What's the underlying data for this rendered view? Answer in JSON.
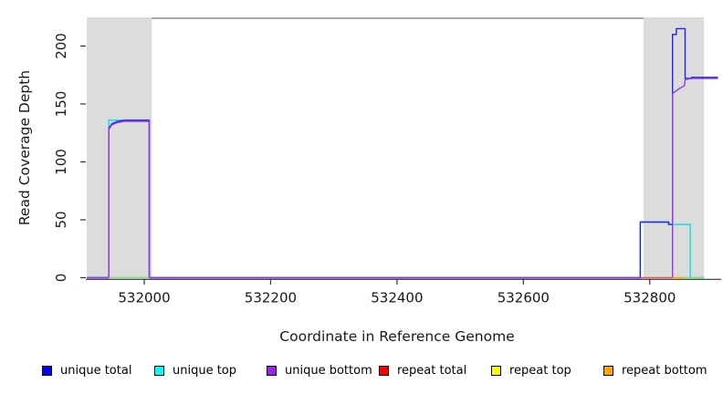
{
  "chart_data": {
    "type": "line",
    "title": "",
    "xlabel": "Coordinate in Reference Genome",
    "ylabel": "Read Coverage Depth",
    "xlim": [
      531909,
      532913
    ],
    "ylim": [
      0,
      224
    ],
    "x_ticks": [
      532000,
      532200,
      532400,
      532600,
      532800
    ],
    "y_ticks": [
      0,
      50,
      100,
      150,
      200
    ],
    "grid": false,
    "legend_position": "bottom",
    "shade_color": "#dcdcdc",
    "shaded_regions": [
      {
        "x0": 531909,
        "x1": 532012
      },
      {
        "x0": 532790,
        "x1": 532886
      }
    ],
    "top_line": {
      "x0": 532012,
      "x1": 532790,
      "value": 224,
      "color": "#8f8f8f"
    },
    "legend": [
      {
        "label": "unique total",
        "color": "#0000ff"
      },
      {
        "label": "unique top",
        "color": "#00ffff"
      },
      {
        "label": "unique bottom",
        "color": "#a020f0"
      },
      {
        "label": "repeat total",
        "color": "#ff0000"
      },
      {
        "label": "repeat top",
        "color": "#ffff00"
      },
      {
        "label": "repeat bottom",
        "color": "#ffa500"
      }
    ],
    "series": [
      {
        "name": "repeat top",
        "line_color": "#ffff00",
        "segments": [
          [
            [
              532790,
              0
            ],
            [
              532886,
              0
            ]
          ]
        ]
      },
      {
        "name": "unique top",
        "line_color": "#00dfe8",
        "segments": [
          [
            [
              531909,
              0
            ],
            [
              531944,
              0
            ],
            [
              531944,
              136
            ],
            [
              532008,
              136
            ],
            [
              532008,
              0
            ],
            [
              532785,
              0
            ],
            [
              532785,
              48
            ],
            [
              532830,
              48
            ],
            [
              532830,
              46
            ],
            [
              532864,
              46
            ],
            [
              532864,
              0
            ],
            [
              532886,
              0
            ]
          ]
        ]
      },
      {
        "name": "unique total",
        "line_color": "#2424e8",
        "segments": [
          [
            [
              531909,
              0
            ],
            [
              531944,
              0
            ],
            [
              531944,
              129
            ],
            [
              531949,
              133
            ],
            [
              531958,
              135
            ],
            [
              531969,
              136
            ],
            [
              532008,
              136
            ],
            [
              532008,
              0
            ],
            [
              532785,
              0
            ],
            [
              532785,
              48
            ],
            [
              532830,
              48
            ],
            [
              532830,
              46
            ],
            [
              532836,
              46
            ],
            [
              532836,
              210
            ],
            [
              532842,
              210
            ],
            [
              532842,
              215
            ],
            [
              532856,
              215
            ],
            [
              532856,
              172
            ],
            [
              532866,
              172
            ],
            [
              532866,
              173
            ],
            [
              532908,
              173
            ]
          ]
        ]
      },
      {
        "name": "unique bottom",
        "line_color": "#9438e0",
        "segments": [
          [
            [
              531909,
              0
            ],
            [
              531944,
              0
            ],
            [
              531944,
              128
            ],
            [
              531949,
              132
            ],
            [
              531958,
              134
            ],
            [
              531969,
              135
            ],
            [
              532008,
              135
            ],
            [
              532008,
              0
            ],
            [
              532787,
              0
            ]
          ],
          [
            [
              532836,
              0
            ],
            [
              532836,
              159
            ],
            [
              532846,
              163
            ],
            [
              532855,
              166
            ],
            [
              532856,
              171
            ],
            [
              532866,
              172
            ],
            [
              532908,
              172
            ]
          ]
        ]
      },
      {
        "name": "repeat total",
        "line_color": "#e04f70",
        "segments": [
          [
            [
              532787,
              0
            ],
            [
              532836,
              0
            ]
          ]
        ]
      },
      {
        "name": "repeat bottom",
        "line_color": "#ff9d00",
        "segments": [
          [
            [
              532836,
              0
            ],
            [
              532853,
              0
            ]
          ]
        ]
      }
    ],
    "extra_baseline_segments": [
      {
        "color": "#84d984",
        "points": [
          [
            531944,
            0
          ],
          [
            532008,
            0
          ]
        ]
      },
      {
        "color": "#84d984",
        "points": [
          [
            532853,
            0
          ],
          [
            532886,
            0
          ]
        ]
      }
    ]
  }
}
